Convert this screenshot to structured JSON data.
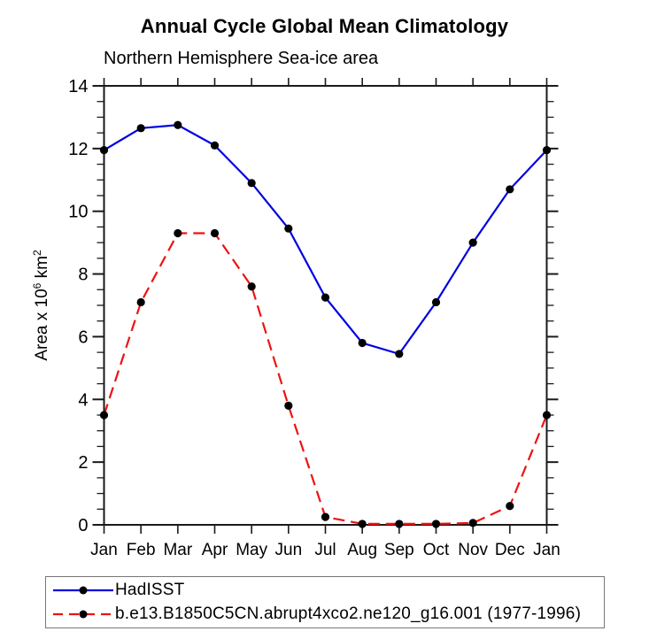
{
  "chart_data": {
    "type": "line",
    "title": "Annual Cycle Global Mean Climatology",
    "subtitle": "Northern Hemisphere Sea-ice area",
    "ylabel_parts": {
      "base1": "Area x 10",
      "sup1": "6",
      "base2": " km",
      "sup2": "2"
    },
    "ylabel_plain": "Area x 10^6 km^2",
    "categories": [
      "Jan",
      "Feb",
      "Mar",
      "Apr",
      "May",
      "Jun",
      "Jul",
      "Aug",
      "Sep",
      "Oct",
      "Nov",
      "Dec",
      "Jan"
    ],
    "ylim": [
      0,
      14
    ],
    "y_major_ticks": [
      0,
      2,
      4,
      6,
      8,
      10,
      12,
      14
    ],
    "y_minor_step": 0.5,
    "grid": false,
    "axis_color": "#1a1a1a",
    "text_color": "#000000",
    "legend_position": "bottom-left-box",
    "series": [
      {
        "name": "HadISST",
        "color": "#0000e0",
        "line_style": "solid",
        "marker": "filled-circle",
        "marker_color": "#000000",
        "values": [
          11.95,
          12.65,
          12.75,
          12.1,
          10.9,
          9.45,
          7.25,
          5.8,
          5.45,
          7.1,
          9.0,
          10.7,
          11.95
        ]
      },
      {
        "name": "b.e13.B1850C5CN.abrupt4xco2.ne120_g16.001 (1977-1996)",
        "color": "#ee1212",
        "line_style": "dashed",
        "marker": "filled-circle",
        "marker_color": "#000000",
        "values": [
          3.5,
          7.1,
          9.3,
          9.3,
          7.6,
          3.8,
          0.25,
          0.03,
          0.03,
          0.03,
          0.06,
          0.6,
          3.5
        ]
      }
    ]
  }
}
